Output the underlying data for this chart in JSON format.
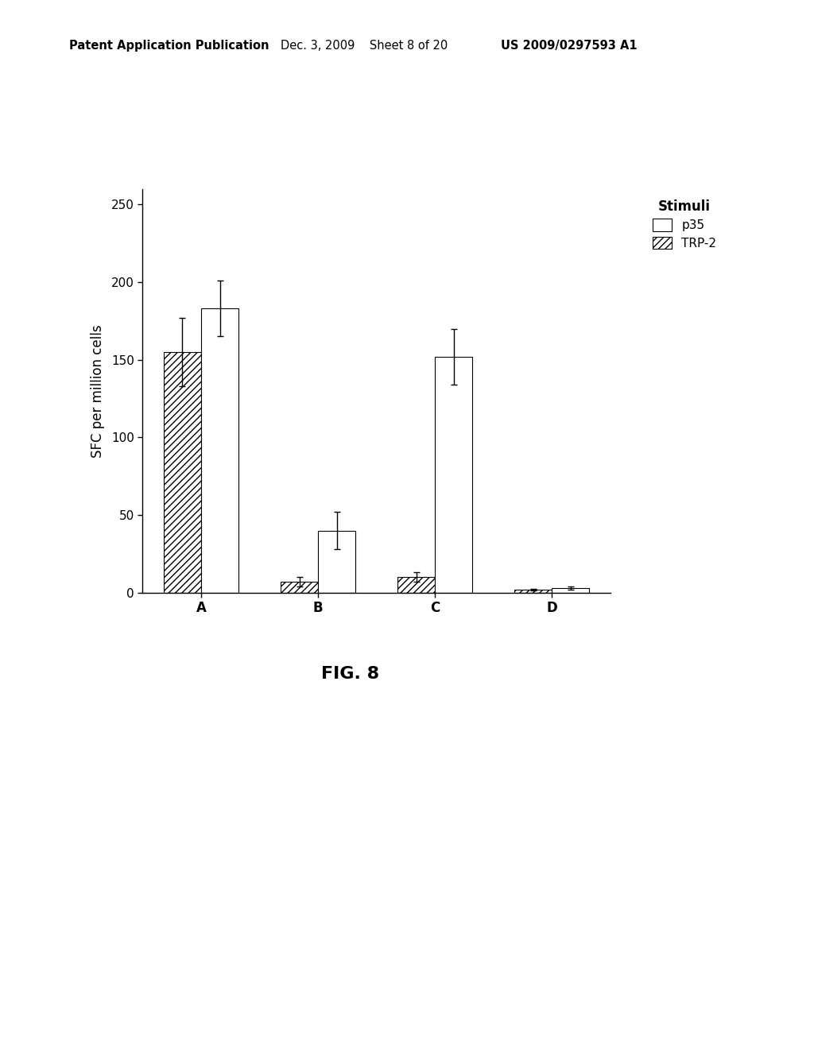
{
  "categories": [
    "A",
    "B",
    "C",
    "D"
  ],
  "p35_values": [
    183,
    40,
    152,
    3
  ],
  "trp2_values": [
    155,
    7,
    10,
    2
  ],
  "p35_errors": [
    18,
    12,
    18,
    1
  ],
  "trp2_errors": [
    22,
    3,
    3,
    0.5
  ],
  "ylabel": "SFC per million cells",
  "ylim": [
    0,
    260
  ],
  "yticks": [
    0,
    50,
    100,
    150,
    200,
    250
  ],
  "legend_title": "Stimuli",
  "legend_p35": "p35",
  "legend_trp2": "TRP-2",
  "bar_width": 0.32,
  "fig_caption": "FIG. 8",
  "header_left": "Patent Application Publication",
  "header_mid": "Dec. 3, 2009    Sheet 8 of 20",
  "header_right": "US 2009/0297593 A1",
  "background_color": "#ffffff",
  "bar_edge_color": "#000000",
  "hatch_pattern": "////"
}
